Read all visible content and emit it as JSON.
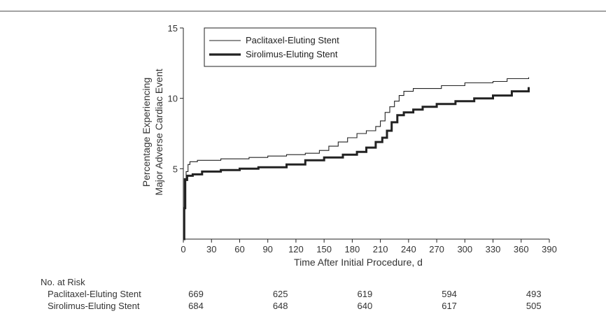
{
  "header": {
    "title_fragment": ""
  },
  "chart_data": {
    "type": "line",
    "title": "",
    "xlabel": "Time After Initial Procedure, d",
    "ylabel": [
      "Percentage Experiencing",
      "Major Adverse Cardiac Event"
    ],
    "xlim": [
      0,
      390
    ],
    "ylim": [
      0,
      15
    ],
    "xticks": [
      0,
      30,
      60,
      90,
      120,
      150,
      180,
      210,
      240,
      270,
      300,
      330,
      360,
      390
    ],
    "yticks": [
      5,
      10,
      15
    ],
    "grid": false,
    "legend_position": "top-left",
    "series": [
      {
        "name": "Paclitaxel-Eluting Stent",
        "style": "thin",
        "color": "#222222",
        "points": [
          [
            0,
            0
          ],
          [
            1,
            4.3
          ],
          [
            3,
            4.8
          ],
          [
            5,
            5.3
          ],
          [
            7,
            5.5
          ],
          [
            15,
            5.6
          ],
          [
            40,
            5.7
          ],
          [
            70,
            5.8
          ],
          [
            90,
            5.9
          ],
          [
            110,
            6.0
          ],
          [
            130,
            6.1
          ],
          [
            145,
            6.3
          ],
          [
            155,
            6.6
          ],
          [
            165,
            6.9
          ],
          [
            175,
            7.2
          ],
          [
            185,
            7.5
          ],
          [
            195,
            7.7
          ],
          [
            205,
            8.0
          ],
          [
            210,
            8.4
          ],
          [
            215,
            9.0
          ],
          [
            220,
            9.4
          ],
          [
            225,
            9.8
          ],
          [
            230,
            10.2
          ],
          [
            235,
            10.5
          ],
          [
            245,
            10.7
          ],
          [
            275,
            10.9
          ],
          [
            300,
            11.1
          ],
          [
            330,
            11.2
          ],
          [
            345,
            11.4
          ],
          [
            368,
            11.5
          ]
        ]
      },
      {
        "name": "Sirolimus-Eluting Stent",
        "style": "thick",
        "color": "#222222",
        "points": [
          [
            0,
            0
          ],
          [
            1,
            2.2
          ],
          [
            2,
            4.2
          ],
          [
            4,
            4.5
          ],
          [
            10,
            4.6
          ],
          [
            20,
            4.8
          ],
          [
            40,
            4.9
          ],
          [
            60,
            5.0
          ],
          [
            80,
            5.1
          ],
          [
            110,
            5.3
          ],
          [
            130,
            5.6
          ],
          [
            150,
            5.8
          ],
          [
            170,
            6.0
          ],
          [
            185,
            6.2
          ],
          [
            195,
            6.5
          ],
          [
            205,
            6.9
          ],
          [
            212,
            7.2
          ],
          [
            217,
            7.7
          ],
          [
            222,
            8.3
          ],
          [
            228,
            8.8
          ],
          [
            235,
            9.0
          ],
          [
            245,
            9.2
          ],
          [
            255,
            9.4
          ],
          [
            270,
            9.6
          ],
          [
            290,
            9.8
          ],
          [
            310,
            10.0
          ],
          [
            330,
            10.2
          ],
          [
            350,
            10.5
          ],
          [
            368,
            10.8
          ]
        ]
      }
    ]
  },
  "risk_table": {
    "title": "No. at Risk",
    "columns_days": [
      0,
      90,
      180,
      270,
      360
    ],
    "rows": [
      {
        "label": "Paclitaxel-Eluting Stent",
        "values": [
          "669",
          "625",
          "619",
          "594",
          "493"
        ]
      },
      {
        "label": "Sirolimus-Eluting Stent",
        "values": [
          "684",
          "648",
          "640",
          "617",
          "505"
        ]
      }
    ]
  }
}
